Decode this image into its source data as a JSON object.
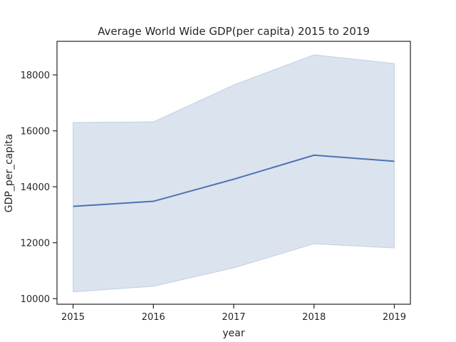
{
  "chart_data": {
    "type": "line",
    "title": "Average World Wide GDP(per capita) 2015 to 2019",
    "xlabel": "year",
    "ylabel": "GDP_per_capita",
    "x": [
      2015,
      2016,
      2017,
      2018,
      2019
    ],
    "xticks": [
      "2015",
      "2016",
      "2017",
      "2018",
      "2019"
    ],
    "yticks": [
      "10000",
      "12000",
      "14000",
      "16000",
      "18000"
    ],
    "xlim": [
      2014.8,
      2019.2
    ],
    "ylim": [
      9800,
      19200
    ],
    "series": [
      {
        "values": [
          13300,
          13480,
          14270,
          15130,
          14910
        ],
        "ci_upper": [
          16300,
          16320,
          17640,
          18720,
          18410
        ],
        "ci_lower": [
          10240,
          10440,
          11100,
          11960,
          11810
        ]
      }
    ],
    "grid": false,
    "colors": {
      "line": "#4c72b0",
      "band": "#4c72b0",
      "axes": "#262626"
    }
  }
}
